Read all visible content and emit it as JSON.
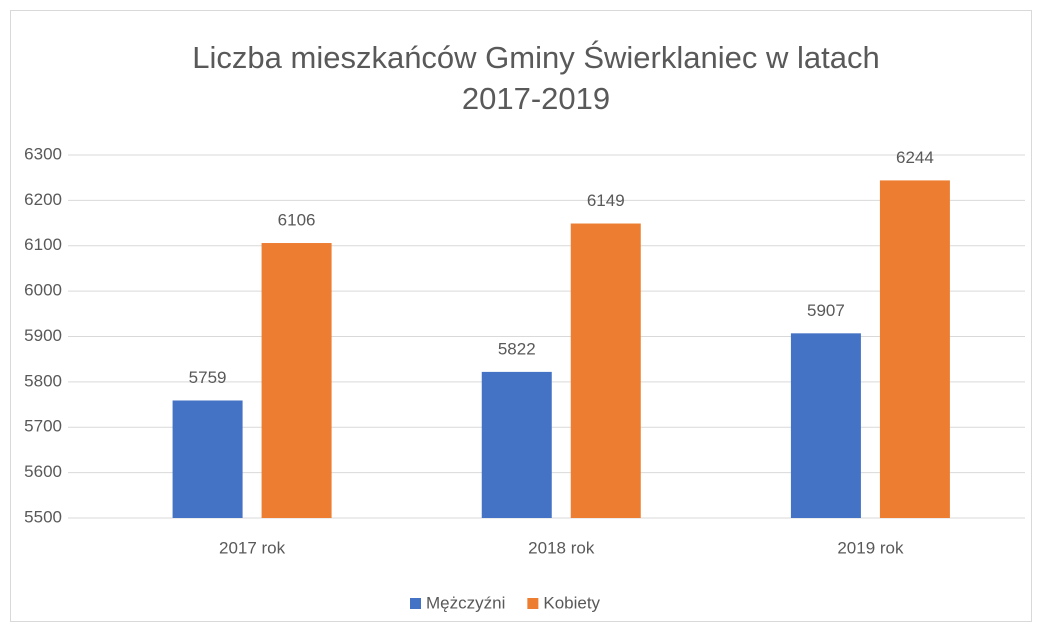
{
  "chart_data": {
    "type": "bar",
    "title": [
      "Liczba mieszkańców Gminy Świerklaniec w latach",
      "2017-2019"
    ],
    "categories": [
      "2017 rok",
      "2018 rok",
      "2019 rok"
    ],
    "series": [
      {
        "name": "Mężczyźni",
        "color": "#4472c4",
        "values": [
          5759,
          5822,
          5907
        ]
      },
      {
        "name": "Kobiety",
        "color": "#ed7d31",
        "values": [
          6106,
          6149,
          6244
        ]
      }
    ],
    "ylim": [
      5500,
      6300
    ],
    "yticks": [
      5500,
      5600,
      5700,
      5800,
      5900,
      6000,
      6100,
      6200,
      6300
    ],
    "grid": true,
    "legend": "bottom",
    "data_labels": true
  }
}
